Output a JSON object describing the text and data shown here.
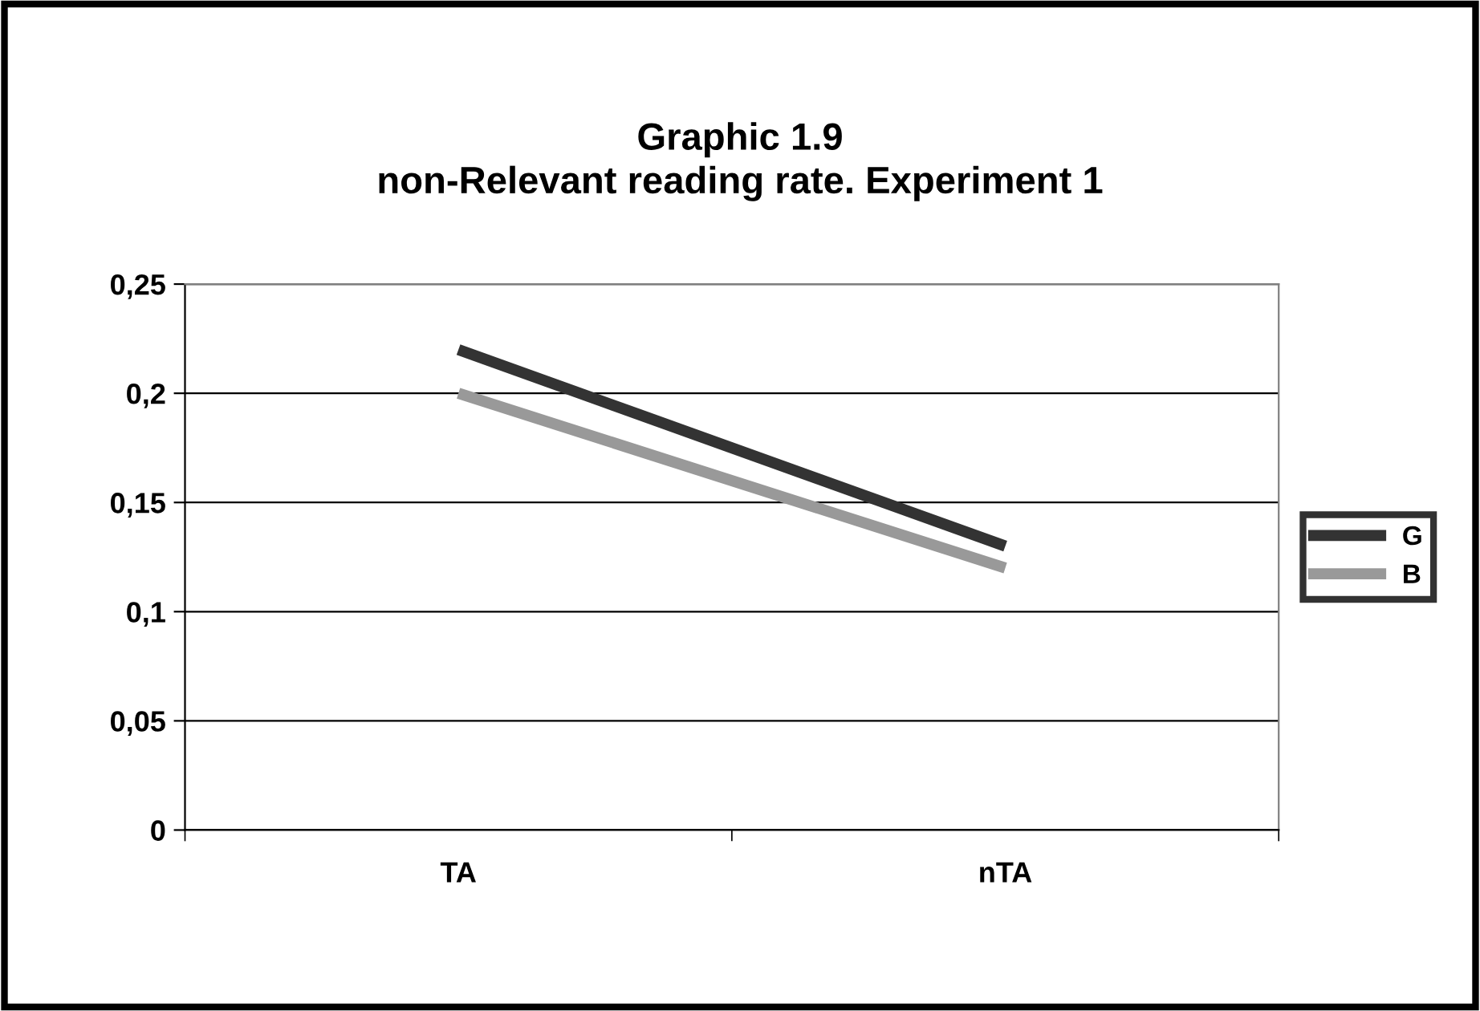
{
  "chart_data": {
    "type": "line",
    "title": "Graphic 1.9\nnon-Relevant reading rate. Experiment 1",
    "categories": [
      "TA",
      "nTA"
    ],
    "series": [
      {
        "name": "G",
        "color": "#333333",
        "values": [
          0.22,
          0.13
        ]
      },
      {
        "name": "B",
        "color": "#999999",
        "values": [
          0.2,
          0.12
        ]
      }
    ],
    "ylim": [
      0,
      0.25
    ],
    "yticks": [
      0,
      {
        "value": 0.05,
        "label": "0,05"
      },
      {
        "value": 0.1,
        "label": "0,1"
      },
      {
        "value": 0.15,
        "label": "0,15"
      },
      {
        "value": 0.2,
        "label": "0,2"
      },
      {
        "value": 0.25,
        "label": "0,25"
      }
    ],
    "grid": "y",
    "legend": "right",
    "marker": "none",
    "line_style": "solid"
  }
}
